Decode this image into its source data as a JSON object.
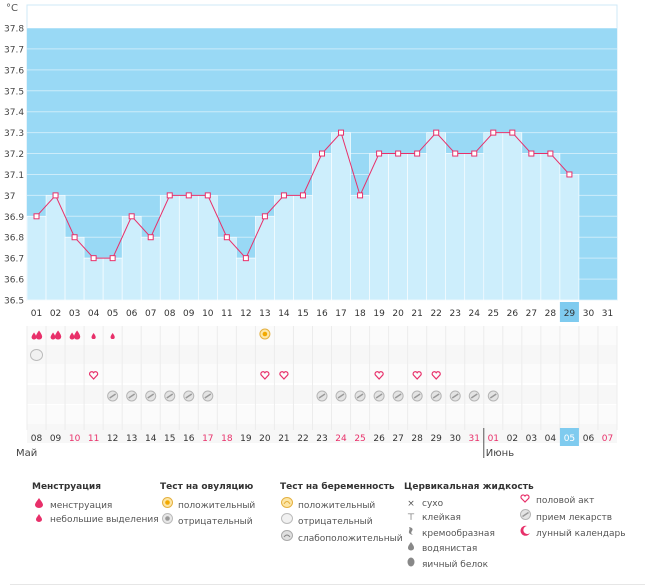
{
  "chart_data": {
    "type": "line",
    "unit": "°C",
    "y_ticks": [
      "37.8",
      "37.7",
      "37.6",
      "37.5",
      "37.4",
      "37.3",
      "37.2",
      "37.1",
      "37",
      "36.9",
      "36.8",
      "36.7",
      "36.6",
      "36.5"
    ],
    "ylim": [
      36.5,
      37.8
    ],
    "cycle_days": [
      "01",
      "02",
      "03",
      "04",
      "05",
      "06",
      "07",
      "08",
      "09",
      "10",
      "11",
      "12",
      "13",
      "14",
      "15",
      "16",
      "17",
      "18",
      "19",
      "20",
      "21",
      "22",
      "23",
      "24",
      "25",
      "26",
      "27",
      "28",
      "29",
      "30",
      "31"
    ],
    "temperatures": [
      36.9,
      37.0,
      36.8,
      36.7,
      36.7,
      36.9,
      36.8,
      37.0,
      37.0,
      37.0,
      36.8,
      36.7,
      36.9,
      37.0,
      37.0,
      37.2,
      37.3,
      37.0,
      37.2,
      37.2,
      37.2,
      37.3,
      37.2,
      37.2,
      37.3,
      37.3,
      37.2,
      37.2,
      37.1,
      null,
      null
    ],
    "current_day_index": 28,
    "dates": [
      "08",
      "09",
      "10",
      "11",
      "12",
      "13",
      "14",
      "15",
      "16",
      "17",
      "18",
      "19",
      "20",
      "21",
      "22",
      "23",
      "24",
      "25",
      "26",
      "27",
      "28",
      "29",
      "30",
      "31",
      "01",
      "02",
      "03",
      "04",
      "05",
      "06",
      "07"
    ],
    "red_date_indices": [
      2,
      3,
      9,
      10,
      16,
      17,
      23,
      24,
      30
    ],
    "month_start_indices": [
      0,
      24
    ],
    "months": [
      "Май",
      "Июнь"
    ],
    "today_date_index": 28,
    "rows": {
      "menstruation": {
        "big": [
          0,
          1,
          2
        ],
        "small": [
          3,
          4
        ]
      },
      "pregnancy_test_neg": [
        0
      ],
      "ovulation_positive": [
        12
      ],
      "intercourse": [
        3,
        12,
        13,
        18,
        20,
        21
      ],
      "medication": [
        4,
        5,
        6,
        7,
        8,
        9,
        15,
        16,
        17,
        18,
        19,
        20,
        21,
        22,
        23,
        24
      ]
    },
    "colors": {
      "sky": "#99d9f5",
      "bar": "#cdeefc",
      "line": "#e8306a",
      "accent": "#e8306a",
      "today": "#7fcbef"
    }
  },
  "legend": {
    "menstr": {
      "title": "Менструация",
      "items": [
        "менструация",
        "небольшие выделения"
      ]
    },
    "ovul": {
      "title": "Тест на овуляцию",
      "items": [
        "положительный",
        "отрицательный"
      ]
    },
    "preg": {
      "title": "Тест на беременность",
      "items": [
        "положительный",
        "отрицательный",
        "слабоположительный"
      ]
    },
    "cerv": {
      "title": "Цервикальная жидкость",
      "items": [
        "сухо",
        "клейкая",
        "кремообразная",
        "водянистая",
        "яичный белок"
      ]
    },
    "other": {
      "items": [
        "половой акт",
        "прием лекарств",
        "лунный календарь"
      ]
    }
  }
}
